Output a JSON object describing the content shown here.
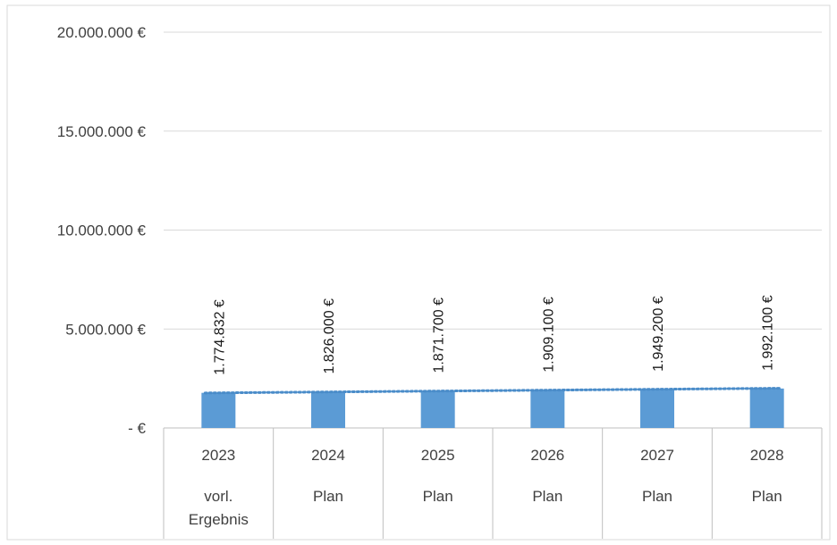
{
  "chart_data": {
    "type": "bar",
    "title": "",
    "xlabel": "",
    "ylabel": "",
    "ylim": [
      0,
      20000000
    ],
    "y_ticks": [
      {
        "value": 0,
        "label": "-   €"
      },
      {
        "value": 5000000,
        "label": "5.000.000 €"
      },
      {
        "value": 10000000,
        "label": "10.000.000 €"
      },
      {
        "value": 15000000,
        "label": "15.000.000 €"
      },
      {
        "value": 20000000,
        "label": "20.000.000 €"
      }
    ],
    "categories": [
      {
        "year": "2023",
        "sub": [
          "vorl.",
          "Ergebnis"
        ]
      },
      {
        "year": "2024",
        "sub": [
          "Plan"
        ]
      },
      {
        "year": "2025",
        "sub": [
          "Plan"
        ]
      },
      {
        "year": "2026",
        "sub": [
          "Plan"
        ]
      },
      {
        "year": "2027",
        "sub": [
          "Plan"
        ]
      },
      {
        "year": "2028",
        "sub": [
          "Plan"
        ]
      }
    ],
    "values": [
      1774832,
      1826000,
      1871700,
      1909100,
      1949200,
      1992100
    ],
    "data_labels": [
      "1.774.832 €",
      "1.826.000 €",
      "1.871.700 €",
      "1.909.100 €",
      "1.949.200 €",
      "1.992.100 €"
    ],
    "trendline": {
      "type": "linear",
      "style": "dotted"
    },
    "grid": true,
    "legend": "none",
    "colors": {
      "bar": "#5b9bd5",
      "trendline": "#4a8cc9",
      "grid": "#d9d9d9",
      "axis": "#bfbfbf"
    }
  }
}
